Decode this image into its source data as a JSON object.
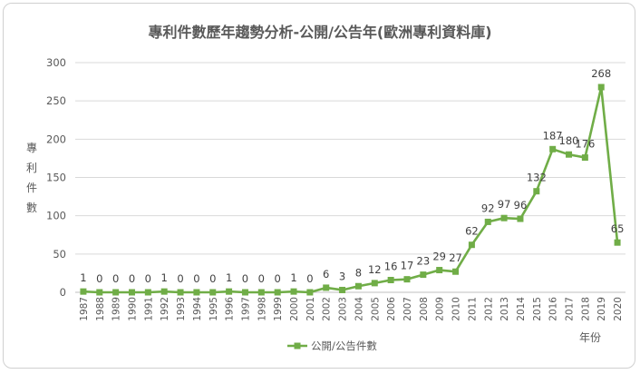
{
  "chart_data": {
    "type": "line",
    "title": "專利件數歷年趨勢分析-公開/公告年(歐洲專利資料庫)",
    "ylabel": "專利件數",
    "xlabel": "年份",
    "ylim": [
      0,
      300
    ],
    "yticks": [
      0,
      50,
      100,
      150,
      200,
      250,
      300
    ],
    "grid": true,
    "legend_position": "bottom",
    "color": "#70ad47",
    "series": [
      {
        "name": "公開/公告件數",
        "x": [
          "1987",
          "1988",
          "1989",
          "1990",
          "1991",
          "1992",
          "1993",
          "1994",
          "1995",
          "1996",
          "1997",
          "1998",
          "1999",
          "2000",
          "2001",
          "2002",
          "2003",
          "2004",
          "2005",
          "2006",
          "2007",
          "2008",
          "2009",
          "2010",
          "2011",
          "2012",
          "2013",
          "2014",
          "2015",
          "2016",
          "2017",
          "2018",
          "2019",
          "2020"
        ],
        "values": [
          1,
          0,
          0,
          0,
          0,
          1,
          0,
          0,
          0,
          1,
          0,
          0,
          0,
          1,
          0,
          6,
          3,
          8,
          12,
          16,
          17,
          23,
          29,
          27,
          62,
          92,
          97,
          96,
          132,
          187,
          180,
          176,
          268,
          65
        ]
      }
    ]
  }
}
